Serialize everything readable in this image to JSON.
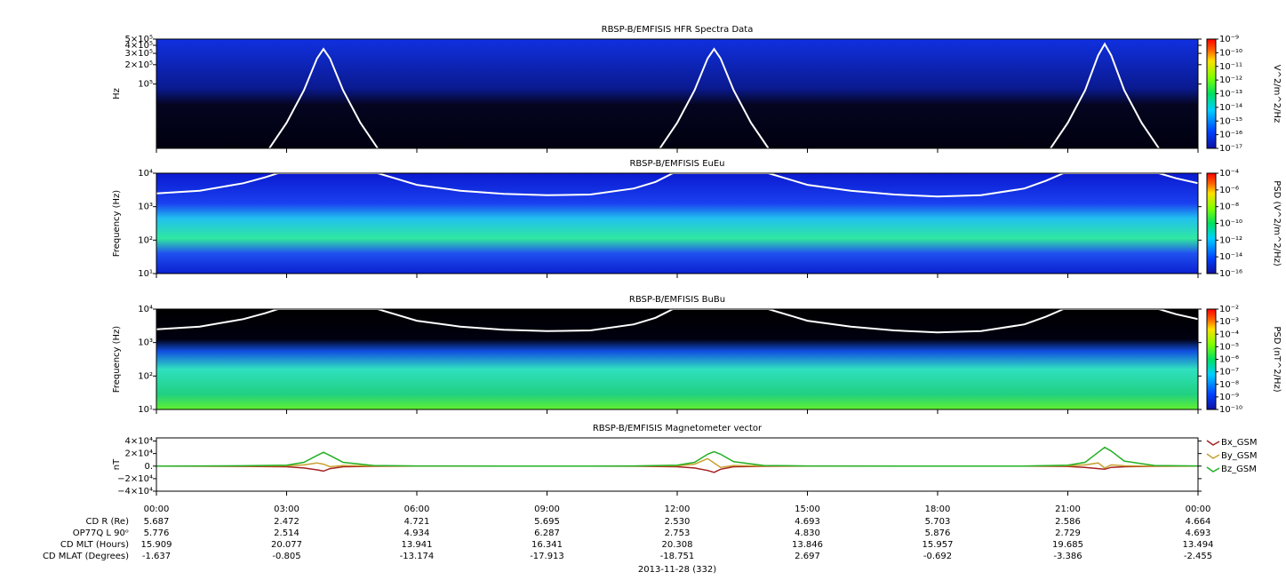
{
  "chart_data": [
    {
      "type": "spectrogram",
      "title": "RBSP-B/EMFISIS  HFR Spectra Data",
      "ylabel": "Hz",
      "log_y": true,
      "xlim": [
        0,
        24
      ],
      "ylim": [
        10000,
        500000
      ],
      "yticks": [
        {
          "value": 100000,
          "label": "10⁵"
        },
        {
          "value": 200000,
          "label": "2×10⁵"
        },
        {
          "value": 300000,
          "label": "3×10⁵"
        },
        {
          "value": 400000,
          "label": "4×10⁵"
        },
        {
          "value": 500000,
          "label": "5×10⁵"
        }
      ],
      "colorbar_label": "V^2/m^2/Hz",
      "colorbar_lim": [
        1e-17,
        1e-09
      ],
      "colorbar_ticks": [
        {
          "value": 1e-17,
          "label": "10⁻¹⁷"
        },
        {
          "value": 1e-16,
          "label": "10⁻¹⁶"
        },
        {
          "value": 1e-15,
          "label": "10⁻¹⁵"
        },
        {
          "value": 1e-14,
          "label": "10⁻¹⁴"
        },
        {
          "value": 1e-13,
          "label": "10⁻¹³"
        },
        {
          "value": 1e-12,
          "label": "10⁻¹²"
        },
        {
          "value": 1e-11,
          "label": "10⁻¹¹"
        },
        {
          "value": 1e-10,
          "label": "10⁻¹⁰"
        },
        {
          "value": 1e-09,
          "label": "10⁻⁹"
        }
      ],
      "curve": {
        "color": "#ffffff",
        "x": [
          2.6,
          3.0,
          3.4,
          3.7,
          3.85,
          4.0,
          4.3,
          4.7,
          5.1,
          8,
          11.6,
          12.0,
          12.4,
          12.7,
          12.85,
          13.0,
          13.3,
          13.7,
          14.1,
          17,
          20.6,
          21.0,
          21.4,
          21.7,
          21.85,
          22.0,
          22.3,
          22.7,
          23.1
        ],
        "values": [
          10000,
          25000,
          80000,
          250000,
          350000,
          250000,
          80000,
          25000,
          10000,
          null,
          10000,
          25000,
          80000,
          250000,
          350000,
          250000,
          80000,
          25000,
          10000,
          null,
          10000,
          25000,
          80000,
          280000,
          420000,
          280000,
          80000,
          25000,
          10000
        ]
      }
    },
    {
      "type": "spectrogram",
      "title": "RBSP-B/EMFISIS  EuEu",
      "ylabel": "Frequency (Hz)",
      "log_y": true,
      "xlim": [
        0,
        24
      ],
      "ylim": [
        10,
        10000
      ],
      "yticks": [
        {
          "value": 10,
          "label": "10¹"
        },
        {
          "value": 100,
          "label": "10²"
        },
        {
          "value": 1000,
          "label": "10³"
        },
        {
          "value": 10000,
          "label": "10⁴"
        }
      ],
      "colorbar_label": "PSD (V^2/m^2/Hz)",
      "colorbar_lim": [
        1e-16,
        0.0001
      ],
      "colorbar_ticks": [
        {
          "value": 1e-16,
          "label": "10⁻¹⁶"
        },
        {
          "value": 1e-14,
          "label": "10⁻¹⁴"
        },
        {
          "value": 1e-12,
          "label": "10⁻¹²"
        },
        {
          "value": 1e-10,
          "label": "10⁻¹⁰"
        },
        {
          "value": 1e-08,
          "label": "10⁻⁸"
        },
        {
          "value": 1e-06,
          "label": "10⁻⁶"
        },
        {
          "value": 0.0001,
          "label": "10⁻⁴"
        }
      ],
      "curve": {
        "color": "#ffffff",
        "x": [
          0,
          1,
          2,
          2.5,
          2.8,
          5.1,
          5.5,
          6,
          7,
          8,
          9,
          10,
          11,
          11.5,
          11.9,
          14.1,
          14.5,
          15,
          16,
          17,
          18,
          19,
          20,
          20.5,
          20.9,
          23.1,
          23.5,
          24
        ],
        "values": [
          2500,
          3000,
          5000,
          7500,
          10000,
          10000,
          7000,
          4500,
          3000,
          2400,
          2200,
          2300,
          3500,
          5500,
          10000,
          10000,
          7000,
          4500,
          3000,
          2300,
          2000,
          2200,
          3500,
          6000,
          10000,
          10000,
          7000,
          5000
        ]
      }
    },
    {
      "type": "spectrogram",
      "title": "RBSP-B/EMFISIS  BuBu",
      "ylabel": "Frequency (Hz)",
      "log_y": true,
      "xlim": [
        0,
        24
      ],
      "ylim": [
        10,
        10000
      ],
      "yticks": [
        {
          "value": 10,
          "label": "10¹"
        },
        {
          "value": 100,
          "label": "10²"
        },
        {
          "value": 1000,
          "label": "10³"
        },
        {
          "value": 10000,
          "label": "10⁴"
        }
      ],
      "colorbar_label": "PSD (nT^2/Hz)",
      "colorbar_lim": [
        1e-10,
        0.01
      ],
      "colorbar_ticks": [
        {
          "value": 1e-10,
          "label": "10⁻¹⁰"
        },
        {
          "value": 1e-09,
          "label": "10⁻⁹"
        },
        {
          "value": 1e-08,
          "label": "10⁻⁸"
        },
        {
          "value": 1e-07,
          "label": "10⁻⁷"
        },
        {
          "value": 1e-06,
          "label": "10⁻⁶"
        },
        {
          "value": 1e-05,
          "label": "10⁻⁵"
        },
        {
          "value": 0.0001,
          "label": "10⁻⁴"
        },
        {
          "value": 0.001,
          "label": "10⁻³"
        },
        {
          "value": 0.01,
          "label": "10⁻²"
        }
      ],
      "curve": {
        "color": "#ffffff",
        "x": [
          0,
          1,
          2,
          2.5,
          2.8,
          5.1,
          5.5,
          6,
          7,
          8,
          9,
          10,
          11,
          11.5,
          11.9,
          14.1,
          14.5,
          15,
          16,
          17,
          18,
          19,
          20,
          20.5,
          20.9,
          23.1,
          23.5,
          24
        ],
        "values": [
          2500,
          3000,
          5000,
          7500,
          10000,
          10000,
          7000,
          4500,
          3000,
          2400,
          2200,
          2300,
          3500,
          5500,
          10000,
          10000,
          7000,
          4500,
          3000,
          2300,
          2000,
          2200,
          3500,
          6000,
          10000,
          10000,
          7000,
          5000
        ]
      }
    },
    {
      "type": "line",
      "title": "RBSP-B/EMFISIS  Magnetometer vector",
      "ylabel": "nT",
      "xlabel": "2013-11-28 (332)",
      "xlim": [
        0,
        24
      ],
      "ylim": [
        -40000,
        45000
      ],
      "xticks": [
        {
          "value": 0,
          "label": "00:00"
        },
        {
          "value": 3,
          "label": "03:00"
        },
        {
          "value": 6,
          "label": "06:00"
        },
        {
          "value": 9,
          "label": "09:00"
        },
        {
          "value": 12,
          "label": "12:00"
        },
        {
          "value": 15,
          "label": "15:00"
        },
        {
          "value": 18,
          "label": "18:00"
        },
        {
          "value": 21,
          "label": "21:00"
        },
        {
          "value": 24,
          "label": "00:00"
        }
      ],
      "yticks": [
        {
          "value": -40000,
          "label": "−4×10⁴"
        },
        {
          "value": -20000,
          "label": "−2×10⁴"
        },
        {
          "value": 0,
          "label": "0."
        },
        {
          "value": 20000,
          "label": "2×10⁴"
        },
        {
          "value": 40000,
          "label": "4×10⁴"
        }
      ],
      "x": [
        0,
        1,
        2,
        3,
        3.4,
        3.7,
        3.85,
        4.0,
        4.3,
        5,
        6,
        8,
        10,
        11,
        12,
        12.4,
        12.7,
        12.85,
        13.0,
        13.3,
        14,
        15,
        18,
        20,
        21,
        21.4,
        21.7,
        21.85,
        22.0,
        22.3,
        23,
        24
      ],
      "series": [
        {
          "name": "Bx_GSM",
          "color": "#a52020",
          "values": [
            0,
            -200,
            -500,
            -1000,
            -3000,
            -6000,
            -8000,
            -4000,
            -1000,
            -300,
            0,
            0,
            0,
            -200,
            -1000,
            -3000,
            -7000,
            -10000,
            -5000,
            -1000,
            -300,
            0,
            0,
            0,
            -500,
            -2000,
            -4000,
            -5000,
            -2000,
            -1000,
            -300,
            0
          ]
        },
        {
          "name": "By_GSM",
          "color": "#c8a030",
          "values": [
            0,
            0,
            100,
            500,
            2000,
            5000,
            3000,
            -1000,
            1000,
            300,
            0,
            0,
            0,
            0,
            500,
            3000,
            12000,
            5000,
            -2000,
            1000,
            200,
            0,
            0,
            0,
            500,
            2000,
            5000,
            -3000,
            2000,
            500,
            100,
            0
          ]
        },
        {
          "name": "Bz_GSM",
          "color": "#22b022",
          "values": [
            0,
            200,
            500,
            1500,
            6000,
            17000,
            22000,
            17000,
            6000,
            1000,
            200,
            0,
            100,
            300,
            1500,
            6000,
            19000,
            23000,
            19000,
            7000,
            1000,
            200,
            0,
            100,
            1500,
            6000,
            22000,
            30000,
            24000,
            8000,
            1000,
            300
          ]
        }
      ]
    }
  ],
  "ephemeris": {
    "rows": [
      {
        "label": "CD R (Re)",
        "values": [
          "5.687",
          "2.472",
          "4.721",
          "5.695",
          "2.530",
          "4.693",
          "5.703",
          "2.586",
          "4.664"
        ]
      },
      {
        "label": "OP77Q L 90ᵒ",
        "values": [
          "5.776",
          "2.514",
          "4.934",
          "6.287",
          "2.753",
          "4.830",
          "5.876",
          "2.729",
          "4.693"
        ]
      },
      {
        "label": "CD MLT (Hours)",
        "values": [
          "15.909",
          "20.077",
          "13.941",
          "16.341",
          "20.308",
          "13.846",
          "15.957",
          "19.685",
          "13.494"
        ]
      },
      {
        "label": "CD MLAT (Degrees)",
        "values": [
          "-1.637",
          "-0.805",
          "-13.174",
          "-17.913",
          "-18.751",
          "2.697",
          "-0.692",
          "-3.386",
          "-2.455"
        ]
      }
    ]
  }
}
